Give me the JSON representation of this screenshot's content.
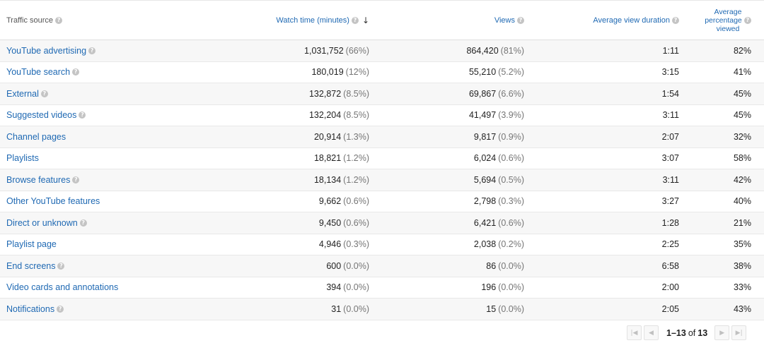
{
  "table": {
    "headers": {
      "source": "Traffic source",
      "watch_time": "Watch time (minutes)",
      "views": "Views",
      "avg_duration": "Average view duration",
      "avg_pct_line1": "Average",
      "avg_pct_line2": "percentage",
      "avg_pct_line3": "viewed"
    },
    "rows": [
      {
        "source": "YouTube advertising",
        "watch": "1,031,752",
        "watch_pct": "(66%)",
        "views": "864,420",
        "views_pct": "(81%)",
        "duration": "1:11",
        "percent": "82%"
      },
      {
        "source": "YouTube search",
        "watch": "180,019",
        "watch_pct": "(12%)",
        "views": "55,210",
        "views_pct": "(5.2%)",
        "duration": "3:15",
        "percent": "41%"
      },
      {
        "source": "External",
        "watch": "132,872",
        "watch_pct": "(8.5%)",
        "views": "69,867",
        "views_pct": "(6.6%)",
        "duration": "1:54",
        "percent": "45%"
      },
      {
        "source": "Suggested videos",
        "watch": "132,204",
        "watch_pct": "(8.5%)",
        "views": "41,497",
        "views_pct": "(3.9%)",
        "duration": "3:11",
        "percent": "45%"
      },
      {
        "source": "Channel pages",
        "watch": "20,914",
        "watch_pct": "(1.3%)",
        "views": "9,817",
        "views_pct": "(0.9%)",
        "duration": "2:07",
        "percent": "32%"
      },
      {
        "source": "Playlists",
        "watch": "18,821",
        "watch_pct": "(1.2%)",
        "views": "6,024",
        "views_pct": "(0.6%)",
        "duration": "3:07",
        "percent": "58%"
      },
      {
        "source": "Browse features",
        "watch": "18,134",
        "watch_pct": "(1.2%)",
        "views": "5,694",
        "views_pct": "(0.5%)",
        "duration": "3:11",
        "percent": "42%"
      },
      {
        "source": "Other YouTube features",
        "watch": "9,662",
        "watch_pct": "(0.6%)",
        "views": "2,798",
        "views_pct": "(0.3%)",
        "duration": "3:27",
        "percent": "40%"
      },
      {
        "source": "Direct or unknown",
        "watch": "9,450",
        "watch_pct": "(0.6%)",
        "views": "6,421",
        "views_pct": "(0.6%)",
        "duration": "1:28",
        "percent": "21%"
      },
      {
        "source": "Playlist page",
        "watch": "4,946",
        "watch_pct": "(0.3%)",
        "views": "2,038",
        "views_pct": "(0.2%)",
        "duration": "2:25",
        "percent": "35%"
      },
      {
        "source": "End screens",
        "watch": "600",
        "watch_pct": "(0.0%)",
        "views": "86",
        "views_pct": "(0.0%)",
        "duration": "6:58",
        "percent": "38%"
      },
      {
        "source": "Video cards and annotations",
        "watch": "394",
        "watch_pct": "(0.0%)",
        "views": "196",
        "views_pct": "(0.0%)",
        "duration": "2:00",
        "percent": "33%"
      },
      {
        "source": "Notifications",
        "watch": "31",
        "watch_pct": "(0.0%)",
        "views": "15",
        "views_pct": "(0.0%)",
        "duration": "2:05",
        "percent": "43%"
      }
    ]
  },
  "pager": {
    "range": "1–13",
    "of": "of",
    "total": "13"
  },
  "icons": {
    "help": "?",
    "sort": "↓",
    "first": "|◀",
    "prev": "◀",
    "next": "▶",
    "last": "▶|"
  },
  "colors": {
    "link": "#1f69b3",
    "muted": "#767676",
    "row_alt": "#f7f7f7"
  }
}
